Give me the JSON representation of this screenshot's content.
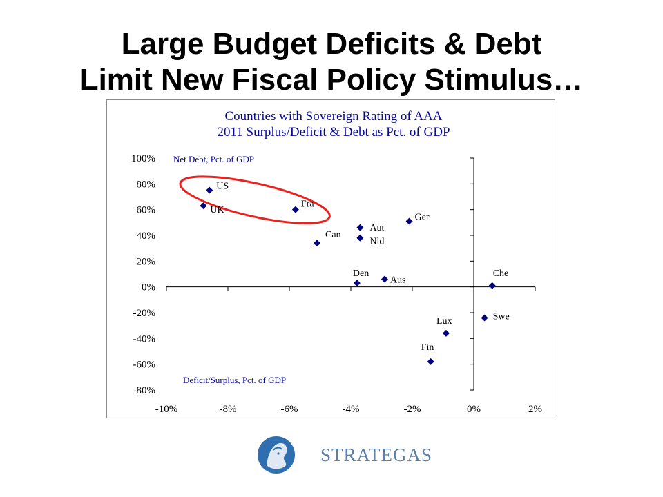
{
  "slide": {
    "title_line1": "Large Budget Deficits & Debt",
    "title_line2": "Limit New Fiscal Policy Stimulus…"
  },
  "logo": {
    "text": "STRATEGAS",
    "color": "#5a7fa8"
  },
  "chart_data": {
    "type": "scatter",
    "title": "Countries with Sovereign Rating of AAA",
    "subtitle": "2011 Surplus/Deficit & Debt as Pct. of GDP",
    "ylabel": "Net Debt, Pct. of GDP",
    "xlabel": "Deficit/Surplus, Pct. of GDP",
    "xlim": [
      -10,
      2
    ],
    "ylim": [
      -80,
      100
    ],
    "x_ticks": [
      "-10%",
      "-8%",
      "-6%",
      "-4%",
      "-2%",
      "0%",
      "2%"
    ],
    "y_ticks": [
      "100%",
      "80%",
      "60%",
      "40%",
      "20%",
      "0%",
      "-20%",
      "-40%",
      "-60%",
      "-80%"
    ],
    "marker_color": "#000080",
    "highlight_color": "#e8231f",
    "highlighted_points": [
      "US",
      "UK",
      "Fra"
    ],
    "points": [
      {
        "label": "US",
        "x": -8.6,
        "y": 75
      },
      {
        "label": "UK",
        "x": -8.8,
        "y": 63
      },
      {
        "label": "Fra",
        "x": -5.8,
        "y": 60
      },
      {
        "label": "Can",
        "x": -5.1,
        "y": 34
      },
      {
        "label": "Aut",
        "x": -3.7,
        "y": 46
      },
      {
        "label": "Nld",
        "x": -3.7,
        "y": 38
      },
      {
        "label": "Ger",
        "x": -2.1,
        "y": 51
      },
      {
        "label": "Den",
        "x": -3.8,
        "y": 3
      },
      {
        "label": "Aus",
        "x": -2.9,
        "y": 6
      },
      {
        "label": "Che",
        "x": 0.6,
        "y": 1
      },
      {
        "label": "Swe",
        "x": 0.35,
        "y": -24
      },
      {
        "label": "Lux",
        "x": -0.9,
        "y": -36
      },
      {
        "label": "Fin",
        "x": -1.4,
        "y": -58
      }
    ]
  }
}
